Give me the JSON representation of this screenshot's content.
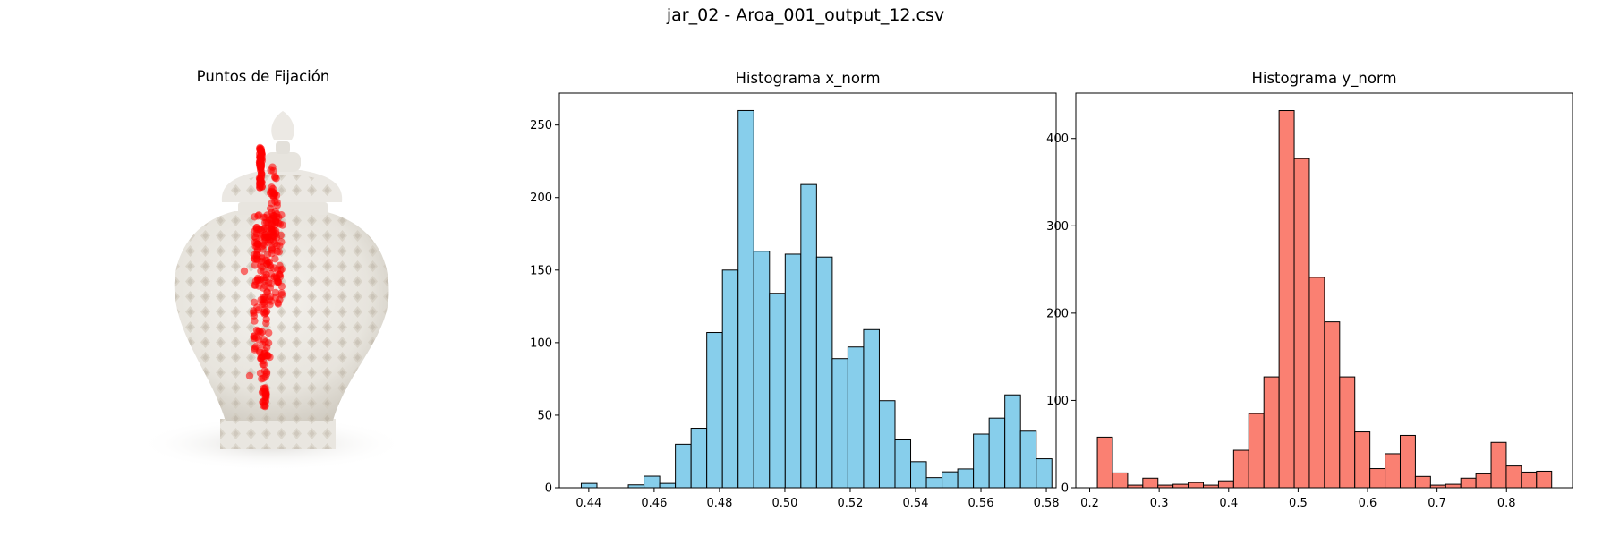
{
  "figure": {
    "title": "jar_02 - Aroa_001_output_12.csv",
    "colors": {
      "x_hist": "#87ceeb",
      "y_hist": "#fa8072",
      "fixation": "#ff0000",
      "edge": "#000000"
    }
  },
  "chart_data": [
    {
      "type": "image",
      "title": "Puntos de Fijación",
      "image_subject": "white lattice porcelain ginger jar with lid",
      "overlay": "red fixation points clustered in a vertical band left of center"
    },
    {
      "type": "bar",
      "title": "Histograma x_norm",
      "xlim": [
        0.431,
        0.583
      ],
      "ylim": [
        0,
        272
      ],
      "xticks": [
        0.44,
        0.46,
        0.48,
        0.5,
        0.52,
        0.54,
        0.56,
        0.58
      ],
      "xtick_labels": [
        "0.44",
        "0.46",
        "0.48",
        "0.50",
        "0.52",
        "0.54",
        "0.56",
        "0.58"
      ],
      "yticks": [
        0,
        50,
        100,
        150,
        200,
        250
      ],
      "ytick_labels": [
        "0",
        "50",
        "100",
        "150",
        "200",
        "250"
      ],
      "bin_edges": [
        0.4377,
        0.4425,
        0.4473,
        0.4521,
        0.4569,
        0.4617,
        0.4665,
        0.4713,
        0.4761,
        0.4809,
        0.4857,
        0.4905,
        0.4953,
        0.5001,
        0.5049,
        0.5097,
        0.5145,
        0.5193,
        0.5241,
        0.5289,
        0.5337,
        0.5385,
        0.5433,
        0.5481,
        0.5529,
        0.5577,
        0.5625,
        0.5673,
        0.5721,
        0.5769,
        0.5817
      ],
      "values": [
        3,
        0,
        0,
        2,
        8,
        3,
        30,
        41,
        107,
        150,
        260,
        163,
        134,
        161,
        209,
        159,
        89,
        97,
        109,
        60,
        33,
        18,
        7,
        11,
        13,
        37,
        48,
        64,
        39,
        20
      ]
    },
    {
      "type": "bar",
      "title": "Histograma y_norm",
      "xlim": [
        0.18,
        0.895
      ],
      "ylim": [
        0,
        452
      ],
      "xticks": [
        0.2,
        0.3,
        0.4,
        0.5,
        0.6,
        0.7,
        0.8
      ],
      "xtick_labels": [
        "0.2",
        "0.3",
        "0.4",
        "0.5",
        "0.6",
        "0.7",
        "0.8"
      ],
      "yticks": [
        0,
        100,
        200,
        300,
        400
      ],
      "ytick_labels": [
        "0",
        "100",
        "200",
        "300",
        "400"
      ],
      "bin_edges": [
        0.211,
        0.2328,
        0.2546,
        0.2764,
        0.2982,
        0.32,
        0.3418,
        0.3636,
        0.3854,
        0.4072,
        0.429,
        0.4508,
        0.4726,
        0.4944,
        0.5162,
        0.538,
        0.5598,
        0.5816,
        0.6034,
        0.6252,
        0.647,
        0.6688,
        0.6906,
        0.7124,
        0.7342,
        0.756,
        0.7778,
        0.7996,
        0.8214,
        0.8432,
        0.865
      ],
      "values": [
        58,
        17,
        3,
        11,
        3,
        4,
        6,
        3,
        8,
        43,
        85,
        127,
        432,
        377,
        241,
        190,
        127,
        64,
        22,
        39,
        60,
        13,
        3,
        4,
        11,
        16,
        52,
        25,
        18,
        19
      ]
    }
  ]
}
